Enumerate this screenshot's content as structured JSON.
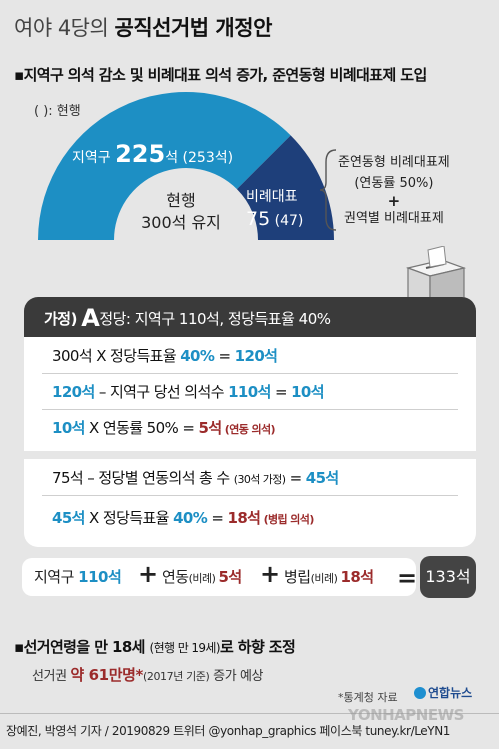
{
  "title_prefix": "여야 4당의",
  "title_main": "공직선거법 개정안",
  "sub1": "▪지역구 의석 감소 및 비례대표 의석 증가, 준연동형 비례대표제 도입",
  "current_note": "( ): 현행",
  "district": {
    "label": "지역구",
    "seats": "225",
    "unit": "석",
    "current": "(253석)",
    "value": 225
  },
  "proportional": {
    "label": "비례대표",
    "seats": "75",
    "current": "(47)",
    "value": 75
  },
  "center": {
    "line1": "현행",
    "line2": "300석 유지"
  },
  "side_note": {
    "line1": "준연동형 비례대표제",
    "line2": "(연동률 50%)",
    "plus": "+",
    "line3": "권역별 비례대표제"
  },
  "panel": {
    "head_prefix": "가정)",
    "head_letter": "A",
    "head_text": "정당: 지역구 110석, 정당득표율 40%",
    "r1": {
      "a": "300석 X 정당득표율 ",
      "b": "40%",
      "c": " = ",
      "d": "120석"
    },
    "r2": {
      "a": "120석",
      "b": " – 지역구 당선 의석수 ",
      "c": "110석",
      "d": " = ",
      "e": "10석"
    },
    "r3": {
      "a": "10석",
      "b": " X 연동률 50% = ",
      "c": "5석",
      "d": " (연동 의석)"
    },
    "r4": {
      "a": "75석 – 정당별 연동의석 총 수 ",
      "b": "(30석 가정)",
      "c": " = ",
      "d": "45석"
    },
    "r5": {
      "a": "45석",
      "b": " X 정당득표율 ",
      "c": "40%",
      "d": " = ",
      "e": "18석",
      "f": " (병립 의석)"
    }
  },
  "totals": {
    "t1_label": "지역구 ",
    "t1_val": "110석",
    "plus": "+",
    "t2_label": "연동",
    "t2_paren": "(비례) ",
    "t2_val": "5석",
    "t3_label": "병립",
    "t3_paren": "(비례) ",
    "t3_val": "18석",
    "eq": "=",
    "result": "133석"
  },
  "sub2": {
    "a": "▪선거연령을 만 18세 ",
    "b": "(현행 만 19세)",
    "c": "로 하향 조정"
  },
  "sub2b": {
    "a": "선거권 ",
    "b": "약 61만명*",
    "c": "(2017년 기준)",
    "d": " 증가 예상"
  },
  "source": "*통계청 자료",
  "logo": "연합뉴스",
  "credit": "장예진, 박영석 기자 / 20190829 트위터 @yonhap_graphics 페이스북 tuney.kr/LeYN1",
  "watermark": "YONHAPNEWS",
  "colors": {
    "district": "#1d8fc4",
    "proportional": "#1e3f7a",
    "accent_red": "#9b2b2b",
    "dark": "#3a3a3a"
  }
}
